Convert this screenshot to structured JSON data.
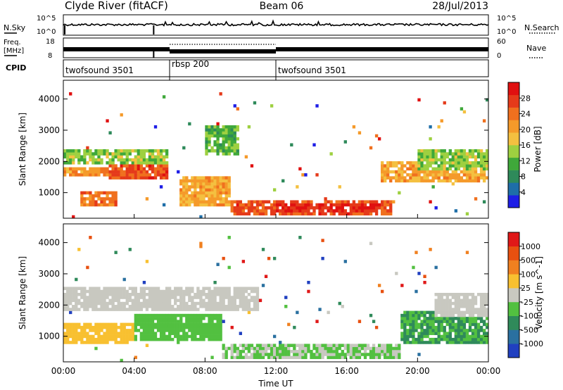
{
  "header": {
    "title": "Clyde River (fitACF)",
    "beam": "Beam 06",
    "date": "28/Jul/2013"
  },
  "top_panels": {
    "nsky_label": "N.Sky",
    "nsearch_label": "N.Search",
    "freq_label_line1": "Freq.",
    "freq_label_line2": "[MHz]",
    "nave_label": "Nave",
    "cpid_label": "CPID",
    "nsky_ticks": [
      "10^5",
      "10^0"
    ],
    "nsearch_ticks": [
      "10^5",
      "10^0"
    ],
    "freq_ticks": [
      "18",
      "8"
    ],
    "nave_ticks": [
      "60",
      "0"
    ],
    "cpid_segments": [
      {
        "name": "twofsound 3501",
        "start_hour": 0,
        "end_hour": 6
      },
      {
        "name": "rbsp 200",
        "start_hour": 6,
        "end_hour": 12
      },
      {
        "name": "twofsound 3501",
        "start_hour": 12,
        "end_hour": 24
      }
    ]
  },
  "x_axis": {
    "label": "Time UT",
    "ticks": [
      "00:00",
      "04:00",
      "08:00",
      "12:00",
      "16:00",
      "20:00",
      "00:00"
    ]
  },
  "power_panel": {
    "ylabel": "Slant Range [km]",
    "yticks": [
      "4000",
      "3000",
      "2000",
      "1000"
    ],
    "colorbar_label": "Power [dB]",
    "colorbar_ticks": [
      "28",
      "24",
      "20",
      "16",
      "12",
      "8",
      "4"
    ],
    "colors": [
      "#1e1ee6",
      "#1e6ea8",
      "#2e8a5a",
      "#3fa83a",
      "#9ed040",
      "#f4c040",
      "#f59a2a",
      "#f0701e",
      "#e53a1a",
      "#e01010"
    ]
  },
  "velocity_panel": {
    "ylabel": "Slant Range [km]",
    "yticks": [
      "4000",
      "3000",
      "2000",
      "1000"
    ],
    "colorbar_label": "Velocity [m s^-1]",
    "colorbar_ticks": [
      "1000",
      "500",
      "100",
      "25",
      "-25",
      "-100",
      "-500",
      "-1000"
    ],
    "colors": [
      "#2040c0",
      "#2a70a0",
      "#2f8a5a",
      "#52c040",
      "#c8c8c0",
      "#f8c030",
      "#f08020",
      "#e85010",
      "#e01818"
    ]
  },
  "chart_data": {
    "type": "heatmap",
    "title": "Clyde River (fitACF)",
    "xlabel": "Time UT",
    "ylabel": "Slant Range [km]",
    "x_range_hours": [
      0,
      24
    ],
    "ylim_km": [
      180,
      4600
    ],
    "series": [
      {
        "name": "Power [dB]",
        "bands": [
          {
            "t0": 0.0,
            "t1": 6.0,
            "r0": 1900,
            "r1": 2400,
            "value": 14
          },
          {
            "t0": 0.0,
            "t1": 3.0,
            "r0": 1500,
            "r1": 1800,
            "value": 22
          },
          {
            "t0": 2.5,
            "t1": 6.0,
            "r0": 1400,
            "r1": 1900,
            "value": 26
          },
          {
            "t0": 1.0,
            "t1": 3.0,
            "r0": 600,
            "r1": 1000,
            "value": 24
          },
          {
            "t0": 6.5,
            "t1": 9.5,
            "r0": 600,
            "r1": 1500,
            "value": 20
          },
          {
            "t0": 8.0,
            "t1": 10.0,
            "r0": 2200,
            "r1": 3200,
            "value": 12
          },
          {
            "t0": 9.5,
            "t1": 18.5,
            "r0": 250,
            "r1": 800,
            "value": 26
          },
          {
            "t0": 12.0,
            "t1": 18.0,
            "r0": 400,
            "r1": 700,
            "value": 29
          },
          {
            "t0": 18.0,
            "t1": 24.0,
            "r0": 1300,
            "r1": 2000,
            "value": 20
          },
          {
            "t0": 20.0,
            "t1": 24.0,
            "r0": 1700,
            "r1": 2400,
            "value": 14
          }
        ]
      },
      {
        "name": "Velocity [m s^-1]",
        "bands": [
          {
            "t0": 0.0,
            "t1": 11.0,
            "r0": 1800,
            "r1": 2600,
            "value": 0
          },
          {
            "t0": 0.0,
            "t1": 4.0,
            "r0": 800,
            "r1": 1400,
            "value": 300
          },
          {
            "t0": 4.0,
            "t1": 9.0,
            "r0": 900,
            "r1": 1700,
            "value": -300
          },
          {
            "t0": 9.0,
            "t1": 19.0,
            "r0": 300,
            "r1": 800,
            "value": -150
          },
          {
            "t0": 19.0,
            "t1": 24.0,
            "r0": 800,
            "r1": 1800,
            "value": -400
          },
          {
            "t0": 21.0,
            "t1": 24.0,
            "r0": 1600,
            "r1": 2400,
            "value": 0
          }
        ]
      }
    ]
  }
}
